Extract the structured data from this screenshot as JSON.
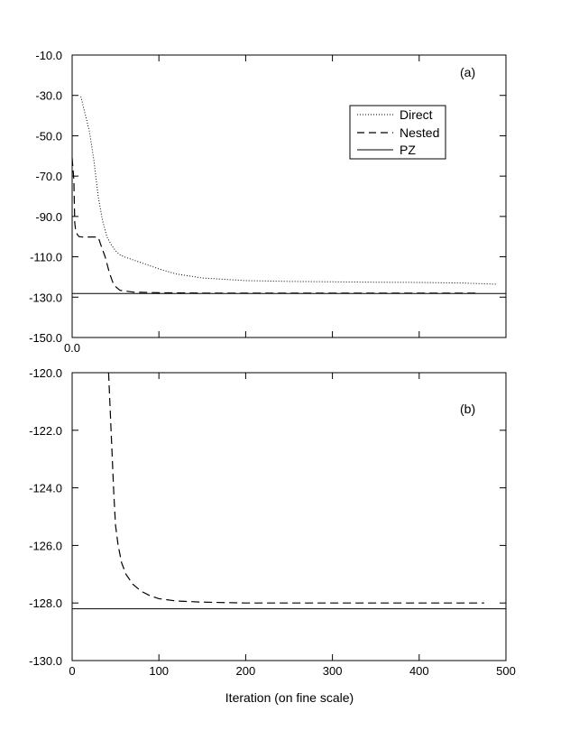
{
  "chart_data": [
    {
      "panel": "(a)",
      "type": "line",
      "xlim": [
        0,
        500
      ],
      "ylim": [
        -150,
        -10
      ],
      "yticks": [
        -10,
        -30,
        -50,
        -70,
        -90,
        -110,
        -130,
        -150
      ],
      "ytick_labels": [
        "-10.0",
        "-30.0",
        "-50.0",
        "-70.0",
        "-90.0",
        "-110.0",
        "-130.0",
        "-150.0"
      ],
      "xticks": [
        0
      ],
      "xtick_labels": [
        "0.0"
      ],
      "legend": {
        "position": "upper-right"
      },
      "series": [
        {
          "name": "Direct",
          "style": "dotted",
          "points": [
            [
              10,
              -30.5
            ],
            [
              20,
              -48
            ],
            [
              25,
              -62
            ],
            [
              30,
              -80
            ],
            [
              35,
              -92
            ],
            [
              40,
              -100
            ],
            [
              45,
              -104
            ],
            [
              50,
              -107
            ],
            [
              55,
              -109
            ],
            [
              60,
              -110
            ],
            [
              70,
              -111.5
            ],
            [
              80,
              -113
            ],
            [
              100,
              -116
            ],
            [
              120,
              -118.5
            ],
            [
              150,
              -120.5
            ],
            [
              200,
              -121.8
            ],
            [
              250,
              -122.2
            ],
            [
              300,
              -122.4
            ],
            [
              350,
              -122.6
            ],
            [
              400,
              -122.7
            ],
            [
              450,
              -123
            ],
            [
              490,
              -123.6
            ]
          ]
        },
        {
          "name": "Nested",
          "style": "dashed",
          "points": [
            [
              0,
              -61
            ],
            [
              2,
              -72
            ],
            [
              3,
              -93
            ],
            [
              4,
              -97
            ],
            [
              6,
              -99
            ],
            [
              8,
              -100
            ],
            [
              12,
              -100.2
            ],
            [
              20,
              -100.2
            ],
            [
              28,
              -100.2
            ],
            [
              30,
              -100.2
            ],
            [
              33,
              -104
            ],
            [
              38,
              -110
            ],
            [
              43,
              -118
            ],
            [
              48,
              -124
            ],
            [
              55,
              -126.6
            ],
            [
              70,
              -127.5
            ],
            [
              100,
              -127.8
            ],
            [
              150,
              -128.0
            ],
            [
              250,
              -128.0
            ],
            [
              400,
              -128.0
            ],
            [
              470,
              -128.0
            ]
          ]
        },
        {
          "name": "PZ",
          "style": "solid",
          "points": [
            [
              0,
              -128.2
            ],
            [
              500,
              -128.2
            ]
          ]
        }
      ]
    },
    {
      "panel": "(b)",
      "type": "line",
      "xlabel": "Iteration (on fine scale)",
      "xlim": [
        0,
        500
      ],
      "ylim": [
        -130,
        -120
      ],
      "xticks": [
        0,
        100,
        200,
        300,
        400,
        500
      ],
      "xtick_labels": [
        "0",
        "100",
        "200",
        "300",
        "400",
        "500"
      ],
      "yticks": [
        -120,
        -122,
        -124,
        -126,
        -128,
        -130
      ],
      "ytick_labels": [
        "-120.0",
        "-122.0",
        "-124.0",
        "-126.0",
        "-128.0",
        "-130.0"
      ],
      "series": [
        {
          "style": "dashed",
          "points": [
            [
              42,
              -120
            ],
            [
              44,
              -121.4
            ],
            [
              46,
              -122.8
            ],
            [
              48,
              -124.2
            ],
            [
              50,
              -125.3
            ],
            [
              53,
              -126.0
            ],
            [
              57,
              -126.6
            ],
            [
              62,
              -127.0
            ],
            [
              70,
              -127.35
            ],
            [
              80,
              -127.6
            ],
            [
              90,
              -127.75
            ],
            [
              100,
              -127.85
            ],
            [
              120,
              -127.93
            ],
            [
              150,
              -127.97
            ],
            [
              200,
              -128.0
            ],
            [
              300,
              -128.0
            ],
            [
              400,
              -128.0
            ],
            [
              475,
              -128.0
            ]
          ]
        },
        {
          "style": "solid",
          "points": [
            [
              0,
              -128.2
            ],
            [
              500,
              -128.2
            ]
          ]
        }
      ]
    }
  ]
}
